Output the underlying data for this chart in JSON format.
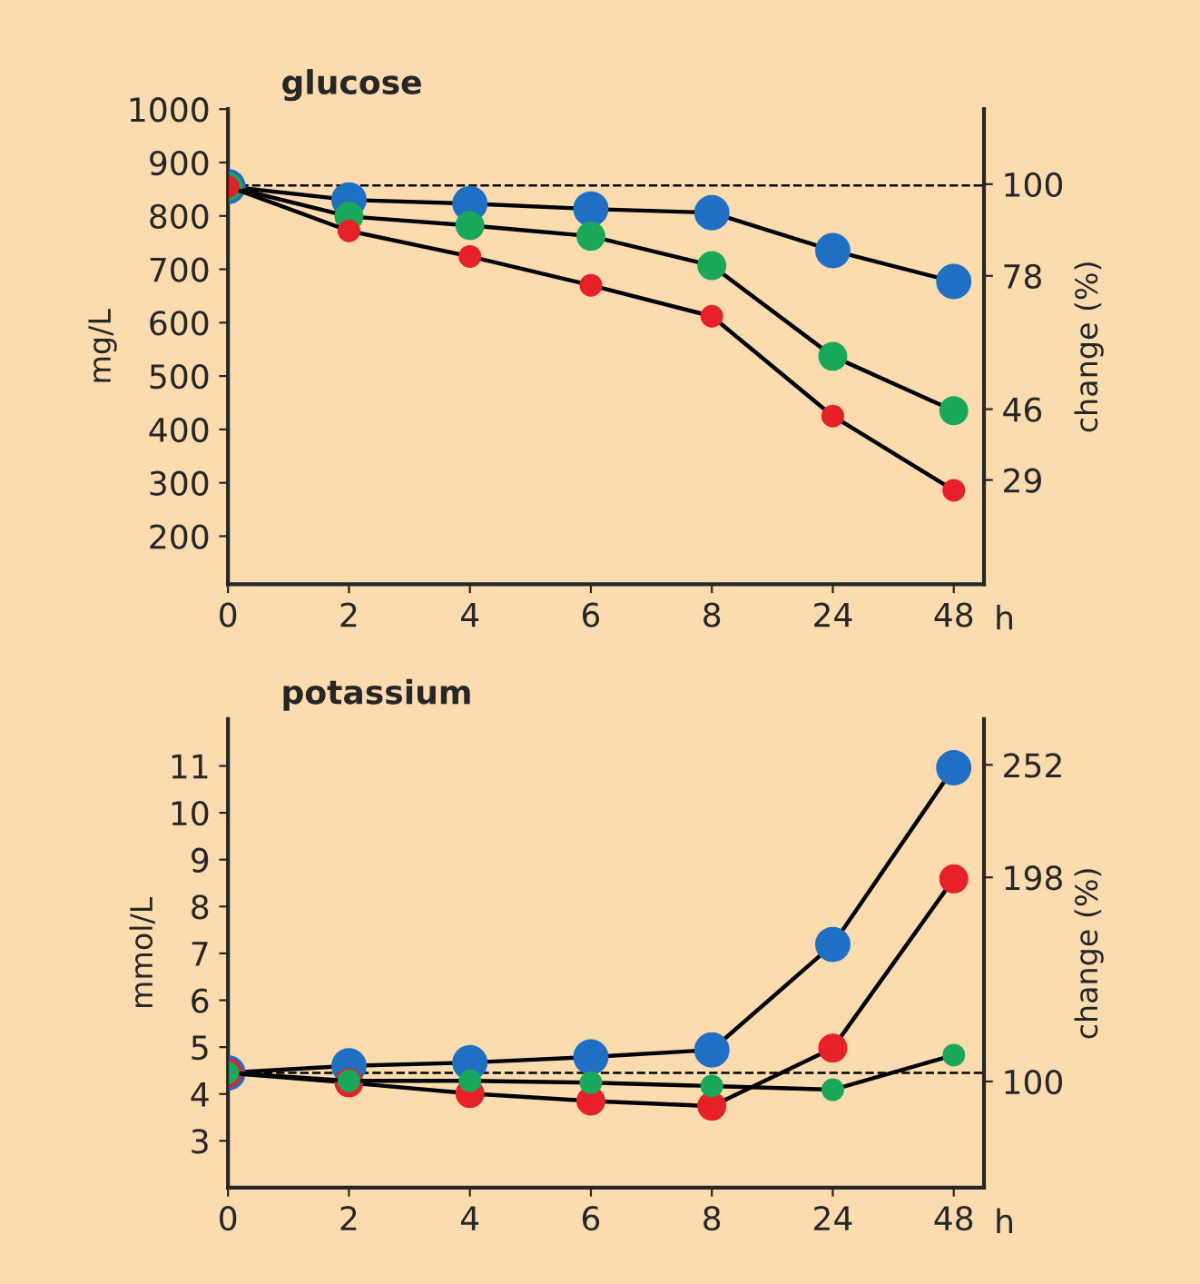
{
  "chart_data": [
    {
      "type": "line",
      "title": "glucose",
      "xlabel": "h",
      "ylabel": "mg/L",
      "y2label": "change (%)",
      "categories": [
        "0",
        "2",
        "4",
        "6",
        "8",
        "24",
        "48"
      ],
      "series": [
        {
          "color": "#1f6fc5",
          "values": [
            855,
            830,
            823,
            813,
            806,
            735,
            677
          ]
        },
        {
          "color": "#19a85a",
          "values": [
            855,
            799,
            782,
            762,
            707,
            537,
            435
          ]
        },
        {
          "color": "#e8202a",
          "values": [
            855,
            772,
            724,
            670,
            612,
            425,
            286
          ]
        }
      ],
      "ylim": [
        110,
        1000
      ],
      "yticks": [
        200,
        300,
        400,
        500,
        600,
        700,
        800,
        900,
        1000
      ],
      "y2lim": [
        4,
        118
      ],
      "y2ticks": [
        100,
        78,
        46,
        29
      ],
      "ref_lines": [
        {
          "axis": "y",
          "value": 857,
          "label": null,
          "color": "#000000",
          "line_style": "dashed"
        }
      ],
      "marker": "circle",
      "line_style": "solid",
      "grid": false,
      "legend": false
    },
    {
      "type": "line",
      "title": "potassium",
      "xlabel": "h",
      "ylabel": "mmol/L",
      "y2label": "change (%)",
      "categories": [
        "0",
        "2",
        "4",
        "6",
        "8",
        "24",
        "48"
      ],
      "series": [
        {
          "color": "#1f6fc5",
          "values": [
            4.45,
            4.6,
            4.67,
            4.79,
            4.94,
            7.19,
            10.96
          ]
        },
        {
          "color": "#e8202a",
          "values": [
            4.45,
            4.24,
            4.01,
            3.85,
            3.74,
            4.98,
            8.59
          ]
        },
        {
          "color": "#19a85a",
          "values": [
            4.45,
            4.28,
            4.28,
            4.24,
            4.17,
            4.09,
            4.83
          ]
        }
      ],
      "ylim": [
        2,
        12
      ],
      "yticks": [
        3,
        4,
        5,
        6,
        7,
        8,
        9,
        10,
        11
      ],
      "y2lim": [
        49,
        274
      ],
      "y2ticks": [
        252,
        198,
        100
      ],
      "ref_lines": [
        {
          "axis": "y",
          "value": 4.45,
          "label": null,
          "color": "#000000",
          "line_style": "dashed"
        }
      ],
      "marker": "circle",
      "line_style": "solid",
      "grid": false,
      "legend": false
    }
  ]
}
